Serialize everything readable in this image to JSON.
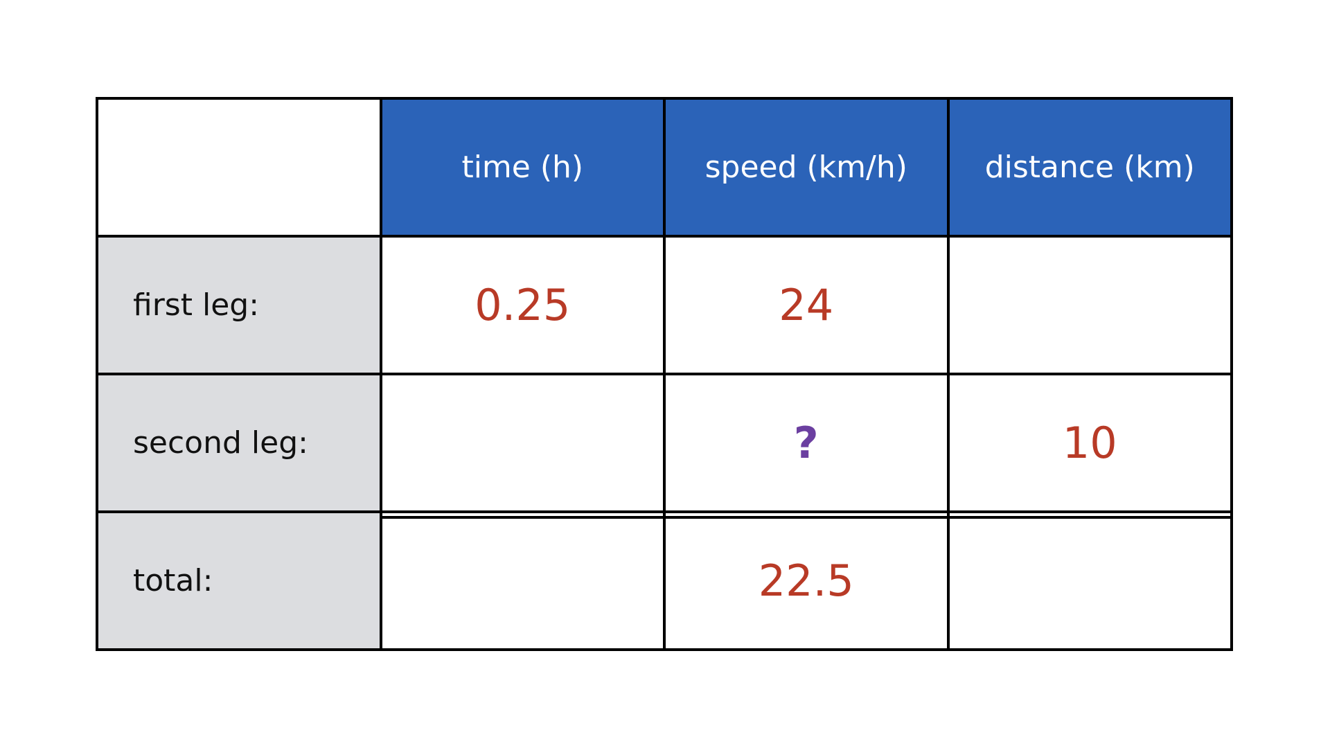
{
  "table": {
    "columns": [
      "time (h)",
      "speed (km/h)",
      "distance (km)"
    ],
    "rows": [
      {
        "label": "first leg:",
        "cells": [
          0.25,
          24,
          null
        ]
      },
      {
        "label": "second leg:",
        "cells": [
          null,
          "?",
          10
        ]
      },
      {
        "label": "total:",
        "cells": [
          null,
          22.5,
          null
        ]
      }
    ]
  }
}
